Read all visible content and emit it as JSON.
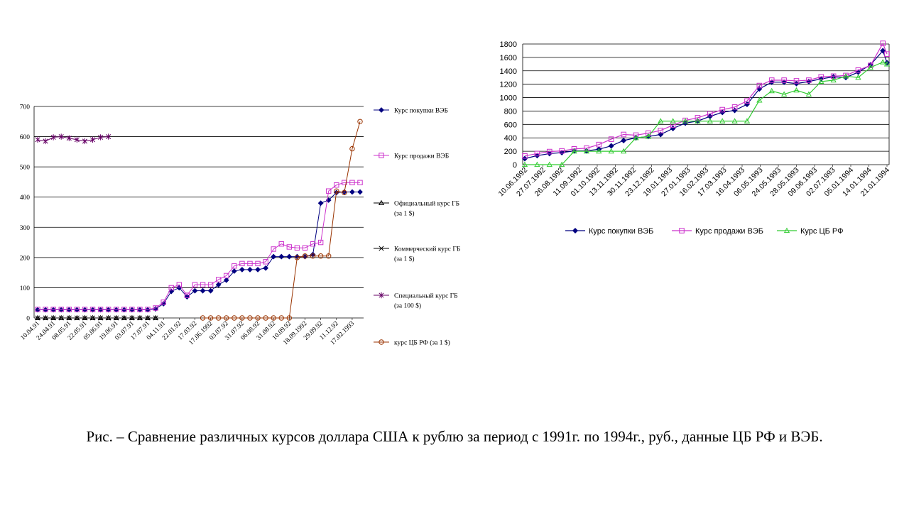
{
  "caption": "Рис. – Сравнение различных курсов доллара США к рублю за период с 1991г. по 1994г., руб., данные ЦБ РФ и ВЭБ.",
  "chart_data": [
    {
      "type": "line",
      "ylim": [
        0,
        700
      ],
      "yticks": [
        0,
        100,
        200,
        300,
        400,
        500,
        600,
        700
      ],
      "grid": true,
      "legend_position": "right",
      "categories": [
        "10.04.91",
        "24.04.91",
        "08.05.91",
        "22.05.91",
        "05.06.91",
        "19.06.91",
        "03.07.91",
        "17.07.91",
        "04.11.91",
        "22.01.92",
        "17.03.92",
        "17.06.1992",
        "03.07.92",
        "31.07.92",
        "06.08.92",
        "31.08.92",
        "10.09.92",
        "18.09.1992",
        "29.09.92",
        "11.12.92",
        "17.02.1993"
      ],
      "x_count": 42,
      "label_indices": [
        0,
        2,
        4,
        6,
        8,
        10,
        12,
        14,
        16,
        18,
        20,
        22,
        24,
        26,
        28,
        30,
        32,
        34,
        36,
        38,
        40
      ],
      "series": [
        {
          "name": "Курс покупки ВЭБ",
          "color": "#000080",
          "marker": "diamond",
          "x": [
            0,
            1,
            2,
            3,
            4,
            5,
            6,
            7,
            8,
            9,
            10,
            11,
            12,
            13,
            14,
            15,
            16,
            17,
            18,
            19,
            20,
            21,
            22,
            23,
            24,
            25,
            26,
            27,
            28,
            29,
            30,
            31,
            32,
            33,
            34,
            35,
            36,
            37,
            38,
            39,
            40,
            41
          ],
          "values": [
            27,
            27,
            27,
            27,
            27,
            27,
            27,
            27,
            27,
            27,
            27,
            27,
            27,
            27,
            27,
            30,
            47,
            88,
            100,
            70,
            90,
            90,
            90,
            110,
            125,
            155,
            160,
            160,
            160,
            165,
            203,
            203,
            203,
            203,
            203,
            210,
            380,
            390,
            415,
            417,
            417,
            417
          ]
        },
        {
          "name": "Курс продажи ВЭБ",
          "color": "#cc33cc",
          "marker": "square",
          "x": [
            0,
            1,
            2,
            3,
            4,
            5,
            6,
            7,
            8,
            9,
            10,
            11,
            12,
            13,
            14,
            15,
            16,
            17,
            18,
            19,
            20,
            21,
            22,
            23,
            24,
            25,
            26,
            27,
            28,
            29,
            30,
            31,
            32,
            33,
            34,
            35,
            36,
            37,
            38,
            39,
            40,
            41
          ],
          "values": [
            28,
            28,
            28,
            28,
            28,
            28,
            28,
            28,
            28,
            28,
            28,
            28,
            28,
            28,
            28,
            33,
            52,
            100,
            110,
            75,
            110,
            110,
            110,
            127,
            140,
            172,
            180,
            180,
            180,
            186,
            228,
            245,
            235,
            232,
            232,
            245,
            250,
            420,
            440,
            448,
            448,
            448
          ]
        },
        {
          "name": "Официальный курс ГБ\n(за 1 $)",
          "color": "#000000",
          "marker": "triangle",
          "x": [
            0,
            1,
            2,
            3,
            4,
            5,
            6,
            7,
            8,
            9,
            10,
            11,
            12,
            13,
            14,
            15
          ],
          "values": [
            0,
            0,
            0,
            0,
            0,
            0,
            0,
            0,
            0,
            0,
            0,
            0,
            0,
            0,
            0,
            0
          ]
        },
        {
          "name": "Коммерческий курс ГБ\n(за 1 $)",
          "color": "#000000",
          "marker": "x",
          "x": [
            0,
            1,
            2,
            3,
            4,
            5,
            6,
            7,
            8,
            9,
            10,
            11,
            12,
            13,
            14,
            15
          ],
          "values": [
            0,
            0,
            0,
            0,
            0,
            0,
            0,
            0,
            0,
            0,
            0,
            0,
            0,
            0,
            0,
            0
          ]
        },
        {
          "name": "Специальный курс ГБ\n(за 100 $)",
          "color": "#660066",
          "marker": "star",
          "x": [
            0,
            1,
            2,
            3,
            4,
            5,
            6,
            7,
            8,
            9
          ],
          "values": [
            590,
            585,
            598,
            600,
            595,
            590,
            585,
            590,
            598,
            600
          ]
        },
        {
          "name": "курс ЦБ РФ (за 1 $)",
          "color": "#993300",
          "marker": "circle",
          "x": [
            21,
            22,
            23,
            24,
            25,
            26,
            27,
            28,
            29,
            30,
            31,
            32,
            33,
            34,
            35,
            36,
            37,
            38,
            39,
            40,
            41
          ],
          "values": [
            0,
            0,
            0,
            0,
            0,
            0,
            0,
            0,
            0,
            0,
            0,
            0,
            200,
            205,
            205,
            205,
            205,
            420,
            415,
            560,
            650
          ]
        }
      ]
    },
    {
      "type": "line",
      "ylim": [
        0,
        1800
      ],
      "yticks": [
        0,
        200,
        400,
        600,
        800,
        1000,
        1200,
        1400,
        1600,
        1800
      ],
      "grid": true,
      "legend_position": "bottom",
      "categories": [
        "10.06.1992",
        "27.07.1992",
        "26.08.1992",
        "11.09.1992",
        "01.10.1992",
        "13.11.1992",
        "30.11.1992",
        "23.12.1992",
        "19.01.1993",
        "27.01.1993",
        "16.02.1993",
        "17.03.1993",
        "16.04.1993",
        "06.05.1993",
        "24.05.1993",
        "28.05.1993",
        "09.06.1993",
        "02.07.1993",
        "05.01.1994",
        "14.01.1994",
        "21.01.1994"
      ],
      "x_count": 89,
      "x_start": 0,
      "x_step": 4.4,
      "series": [
        {
          "name": "Курс покупки ВЭБ",
          "color": "#000080",
          "marker": "diamond",
          "x": [
            0,
            3,
            6,
            9,
            12,
            15,
            18,
            21,
            24,
            27,
            30,
            33,
            36,
            39,
            42,
            45,
            48,
            51,
            54,
            57,
            60,
            63,
            66,
            69,
            72,
            75,
            78,
            81,
            84,
            87,
            88
          ],
          "values": [
            90,
            135,
            165,
            180,
            205,
            205,
            230,
            280,
            360,
            400,
            420,
            450,
            540,
            620,
            650,
            720,
            780,
            810,
            900,
            1130,
            1230,
            1230,
            1210,
            1240,
            1280,
            1310,
            1300,
            1380,
            1490,
            1700,
            1520
          ]
        },
        {
          "name": "Курс продажи ВЭБ",
          "color": "#cc33cc",
          "marker": "square",
          "x": [
            0,
            3,
            6,
            9,
            12,
            15,
            18,
            21,
            24,
            27,
            30,
            33,
            36,
            39,
            42,
            45,
            48,
            51,
            54,
            57,
            60,
            63,
            66,
            69,
            72,
            75,
            78,
            81,
            84,
            87,
            88
          ],
          "values": [
            130,
            165,
            195,
            205,
            235,
            245,
            300,
            380,
            450,
            440,
            470,
            510,
            590,
            660,
            700,
            760,
            820,
            860,
            950,
            1180,
            1260,
            1260,
            1250,
            1260,
            1310,
            1320,
            1330,
            1410,
            1480,
            1810,
            1650
          ]
        },
        {
          "name": "Курс ЦБ РФ",
          "color": "#33cc33",
          "marker": "triangle",
          "x": [
            0,
            3,
            6,
            9,
            12,
            15,
            18,
            21,
            24,
            27,
            30,
            33,
            36,
            39,
            42,
            45,
            48,
            51,
            54,
            57,
            60,
            63,
            66,
            69,
            72,
            75,
            78,
            81,
            84,
            87,
            88
          ],
          "values": [
            0,
            0,
            0,
            0,
            200,
            200,
            200,
            200,
            200,
            400,
            420,
            650,
            650,
            650,
            650,
            650,
            650,
            650,
            650,
            960,
            1100,
            1050,
            1110,
            1050,
            1240,
            1260,
            1320,
            1300,
            1450,
            1530,
            1500
          ]
        }
      ]
    }
  ]
}
